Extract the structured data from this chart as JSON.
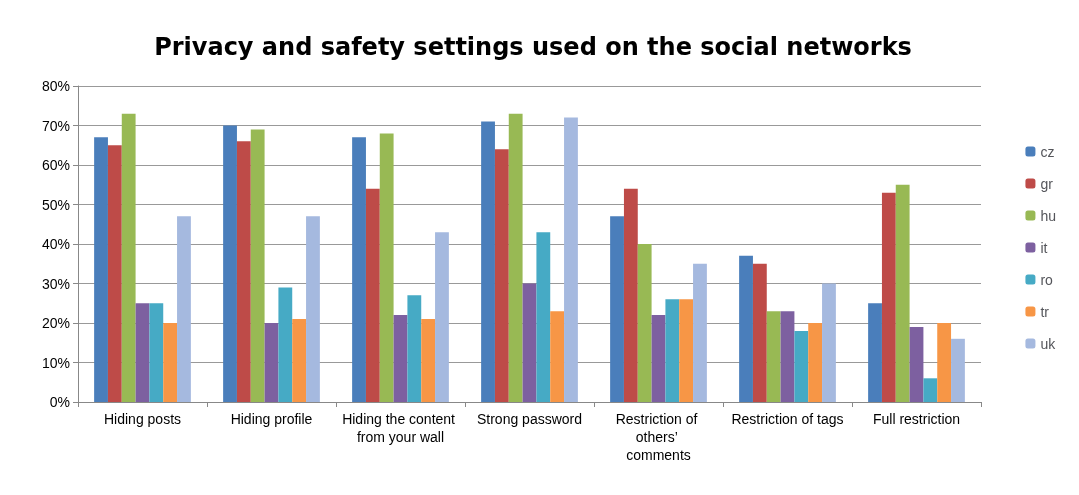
{
  "chart_data": {
    "type": "bar",
    "title": "Privacy and safety settings used on the social networks",
    "categories": [
      "Hiding posts",
      "Hiding profile",
      "Hiding the content from your wall",
      "Strong password",
      "Restriction of others’ comments",
      "Restriction of tags",
      "Full restriction"
    ],
    "series": [
      {
        "name": "cz",
        "color": "#4a7ebb",
        "values": [
          67,
          70,
          67,
          71,
          47,
          37,
          25
        ]
      },
      {
        "name": "gr",
        "color": "#be4b48",
        "values": [
          65,
          66,
          54,
          64,
          54,
          35,
          53
        ]
      },
      {
        "name": "hu",
        "color": "#98b954",
        "values": [
          73,
          69,
          68,
          73,
          40,
          23,
          55
        ]
      },
      {
        "name": "it",
        "color": "#7d60a0",
        "values": [
          25,
          20,
          22,
          30,
          22,
          23,
          19
        ]
      },
      {
        "name": "ro",
        "color": "#46aac5",
        "values": [
          25,
          29,
          27,
          43,
          26,
          18,
          6
        ]
      },
      {
        "name": "tr",
        "color": "#f79646",
        "values": [
          20,
          21,
          21,
          23,
          26,
          20,
          20
        ]
      },
      {
        "name": "uk",
        "color": "#a5b9df",
        "values": [
          47,
          47,
          43,
          72,
          35,
          30,
          16
        ]
      }
    ],
    "ylim": [
      0,
      80
    ],
    "yticks": [
      {
        "value": 0,
        "label": "0%"
      },
      {
        "value": 10,
        "label": "10%"
      },
      {
        "value": 20,
        "label": "20%"
      },
      {
        "value": 30,
        "label": "30%"
      },
      {
        "value": 40,
        "label": "40%"
      },
      {
        "value": 50,
        "label": "50%"
      },
      {
        "value": 60,
        "label": "60%"
      },
      {
        "value": 70,
        "label": "70%"
      },
      {
        "value": 80,
        "label": "80%"
      }
    ],
    "grid": "y",
    "legend": "right"
  }
}
